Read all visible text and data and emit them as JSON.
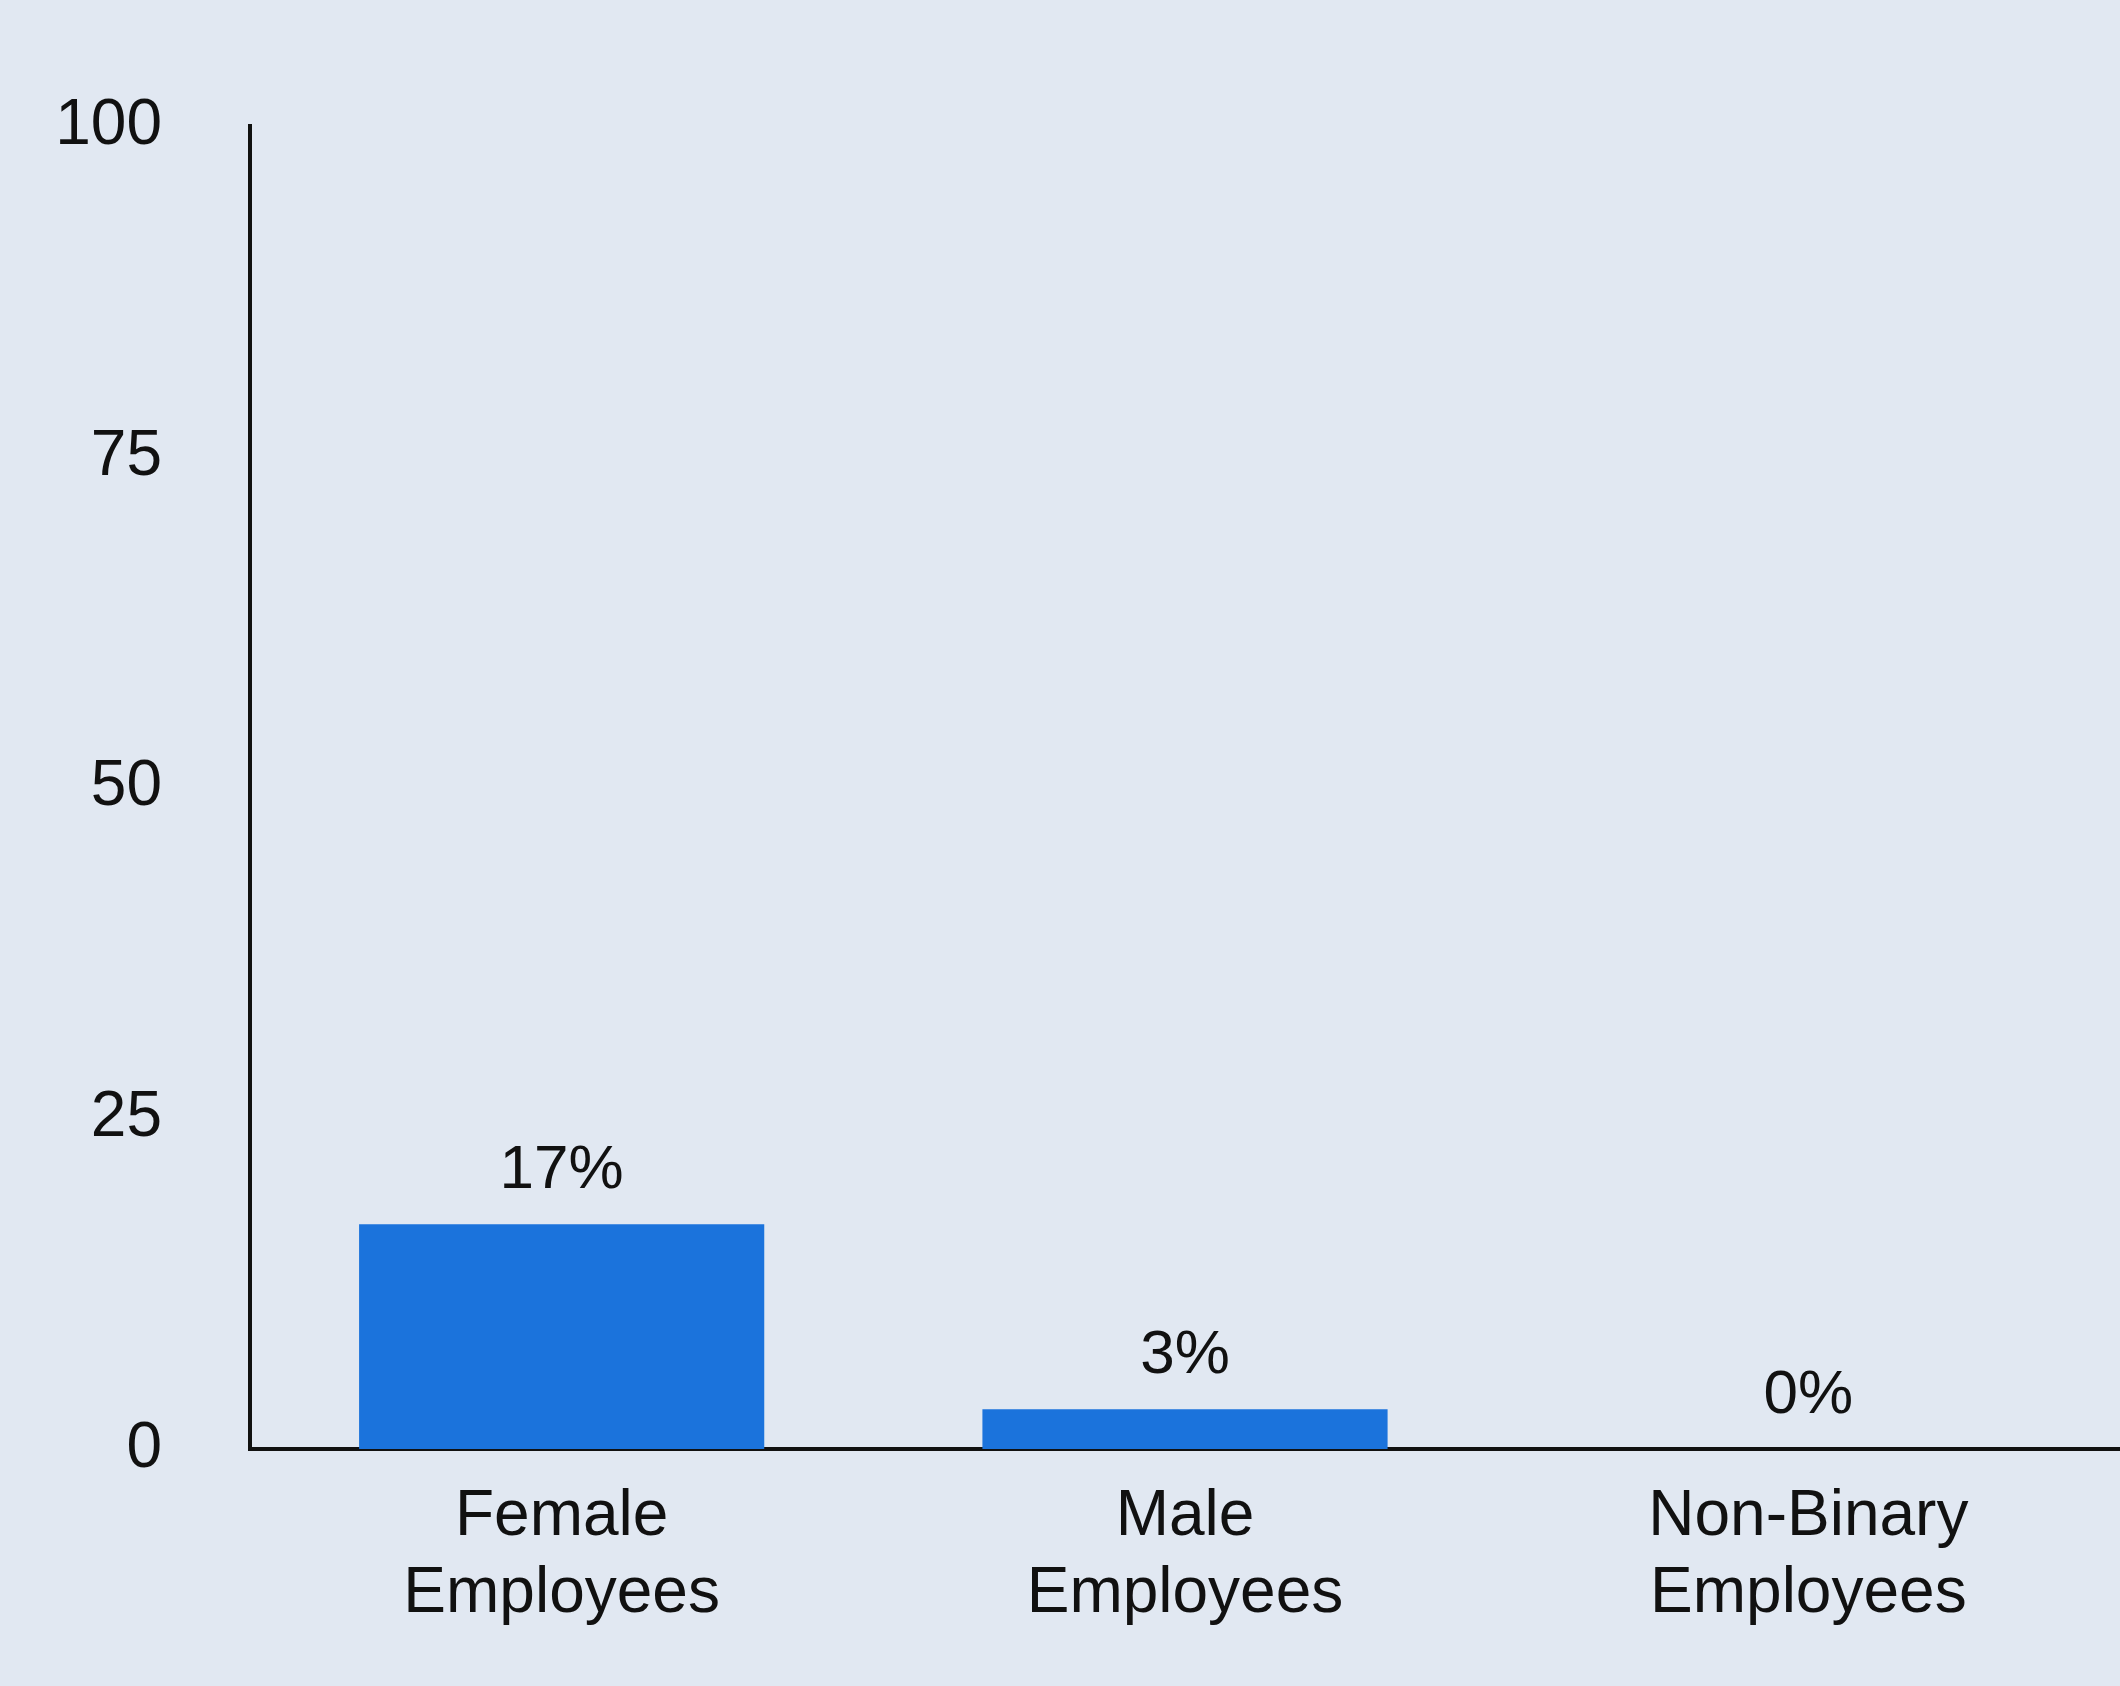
{
  "chart_data": {
    "type": "bar",
    "categories": [
      "Female Employees",
      "Male Employees",
      "Non-Binary Employees"
    ],
    "values": [
      17,
      3,
      0
    ],
    "value_labels": [
      "17%",
      "3%",
      "0%"
    ],
    "color": "#1b73dc",
    "ylim": [
      0,
      100
    ],
    "yticks": [
      0,
      25,
      50,
      75,
      100
    ],
    "grid": false,
    "legend": false
  }
}
